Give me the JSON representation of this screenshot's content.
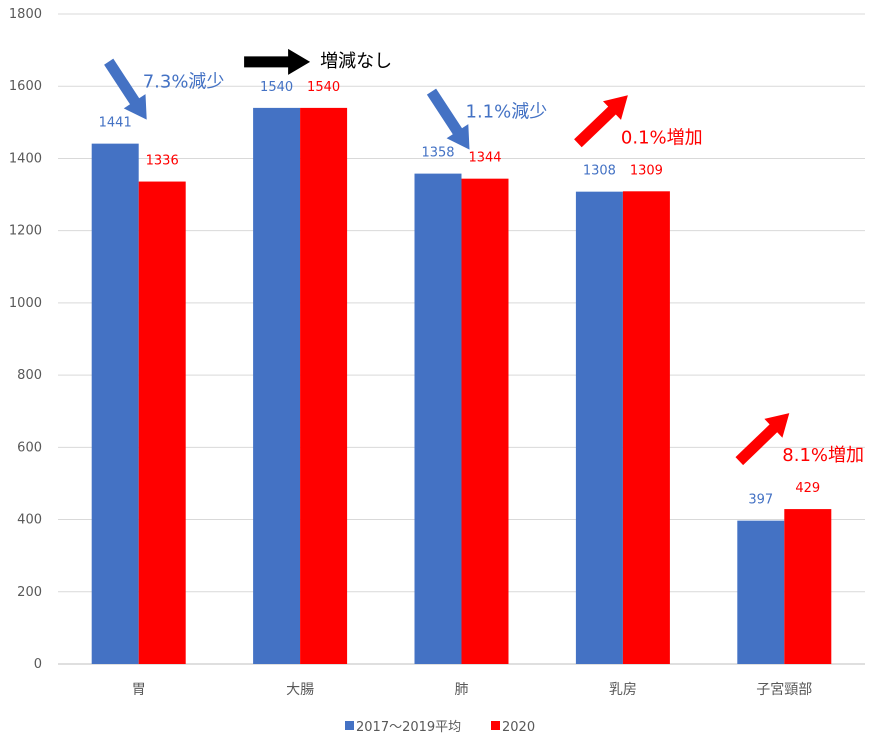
{
  "chart_data": {
    "type": "bar",
    "categories": [
      "胃",
      "大腸",
      "肺",
      "乳房",
      "子宮頸部"
    ],
    "series": [
      {
        "name": "2017〜2019平均",
        "values": [
          1441,
          1540,
          1358,
          1308,
          397
        ],
        "color": "#4472C4"
      },
      {
        "name": "2020",
        "values": [
          1336,
          1540,
          1344,
          1309,
          429
        ],
        "color": "#FF0000"
      }
    ],
    "ylim": [
      0,
      1800
    ],
    "yticks": [
      0,
      200,
      400,
      600,
      800,
      1000,
      1200,
      1400,
      1600,
      1800
    ],
    "grid": true,
    "legend_position": "bottom",
    "annotations": [
      {
        "category": "胃",
        "text": "7.3%減少",
        "direction": "down",
        "color": "#4472C4"
      },
      {
        "category": "大腸",
        "text": "増減なし",
        "direction": "right",
        "color": "#000000"
      },
      {
        "category": "肺",
        "text": "1.1%減少",
        "direction": "down",
        "color": "#4472C4"
      },
      {
        "category": "乳房",
        "text": "0.1%増加",
        "direction": "up",
        "color": "#FF0000"
      },
      {
        "category": "子宮頸部",
        "text": "8.1%増加",
        "direction": "up",
        "color": "#FF0000"
      }
    ]
  }
}
